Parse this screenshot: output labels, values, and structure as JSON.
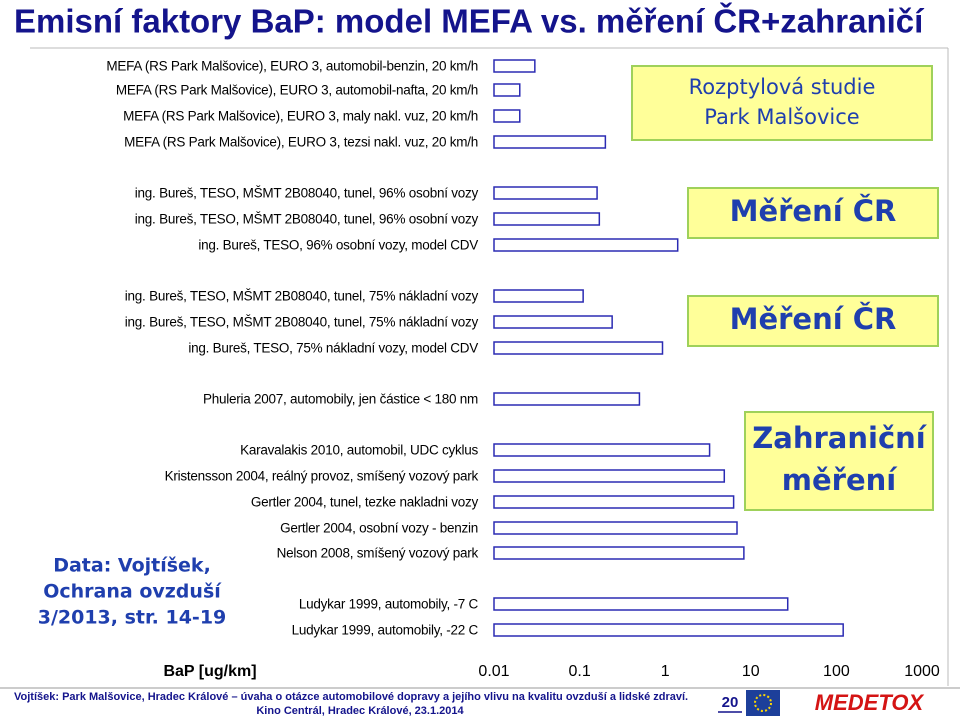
{
  "chart_data": {
    "type": "bar",
    "orientation": "horizontal",
    "title": "Emisní faktory BaP: model MEFA vs. měření ČR+zahraničí",
    "xlabel": "BaP [ug/km]",
    "log_scale": true,
    "xlim": [
      0.01,
      1000
    ],
    "xticks": [
      0.01,
      0.1,
      1,
      10,
      100,
      1000
    ],
    "color": "#ffffff",
    "edge_color": "#2b2bb3",
    "categories": [
      "MEFA (RS Park Malšovice), EURO 3, automobil-benzin, 20 km/h",
      "MEFA (RS Park Malšovice), EURO 3, automobil-nafta, 20 km/h",
      "MEFA (RS Park Malšovice), EURO 3, maly nakl. vuz, 20 km/h",
      "MEFA (RS Park Malšovice), EURO 3, tezsi nakl. vuz, 20 km/h",
      "ing. Bureš, TESO, MŠMT 2B08040, tunel, 96% osobní vozy",
      "ing. Bureš, TESO, MŠMT 2B08040, tunel, 96% osobní vozy",
      "ing. Bureš, TESO, 96% osobní vozy, model CDV",
      "ing. Bureš, TESO, MŠMT 2B08040, tunel, 75% nákladní vozy",
      "ing. Bureš, TESO, MŠMT 2B08040, tunel, 75% nákladní vozy",
      "ing. Bureš, TESO, 75% nákladní vozy, model CDV",
      "Phuleria 2007, automobily, jen částice < 180 nm",
      "Karavalakis 2010, automobil, UDC cyklus",
      "Kristensson 2004, reálný provoz, smíšený vozový park",
      "Gertler 2004, tunel, tezke nakladni vozy",
      "Gertler 2004, osobní vozy - benzin",
      "Nelson 2008, smíšený vozový park",
      "Ludykar 1999, automobily, -7 C",
      "Ludykar 1999, automobily, -22 C"
    ],
    "values": [
      0.03,
      0.02,
      0.02,
      0.2,
      0.16,
      0.17,
      1.4,
      0.11,
      0.24,
      0.93,
      0.5,
      3.3,
      4.9,
      6.3,
      6.9,
      8.3,
      27,
      120
    ],
    "annotations": [
      {
        "text": [
          "Rozptylová studie",
          "Park Malšovice"
        ]
      },
      {
        "text": [
          "Měření ČR"
        ]
      },
      {
        "text": [
          "Měření ČR"
        ]
      },
      {
        "text": [
          "Zahraniční",
          "měření"
        ]
      },
      {
        "text": [
          "Data: Vojtíšek,",
          "Ochrana ovzduší",
          "3/2013, str. 14-19"
        ]
      }
    ]
  },
  "footer": {
    "line1": "Vojtíšek: Park Malšovice, Hradec Králové – úvaha o otázce automobilové dopravy a jejího vlivu na kvalitu ovzduší a lidské zdraví.",
    "line2": "Kino Centrál, Hradec Králové, 23.1.2014",
    "page": "20",
    "logo": "MEDETOX"
  }
}
